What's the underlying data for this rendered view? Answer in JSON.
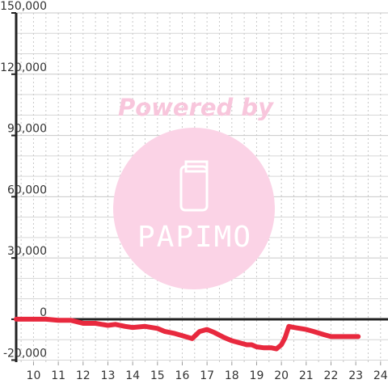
{
  "watermark": {
    "caption": "Powered by",
    "logo_text": "PAPIMO",
    "circle_color": "#fbd3e6",
    "icon": "phone-icon"
  },
  "chart_data": {
    "type": "line",
    "title": "",
    "xlabel": "",
    "ylabel": "",
    "xlim": [
      9.3,
      24.3
    ],
    "ylim": [
      -21000,
      150000
    ],
    "x_ticks": [
      10,
      11,
      12,
      13,
      14,
      15,
      16,
      17,
      18,
      19,
      20,
      21,
      22,
      23,
      24
    ],
    "x_tick_labels": [
      "10",
      "11",
      "12",
      "13",
      "14",
      "15",
      "16",
      "17",
      "18",
      "19",
      "20",
      "21",
      "22",
      "23",
      "24"
    ],
    "y_ticks": [
      -20000,
      0,
      30000,
      60000,
      90000,
      120000,
      150000
    ],
    "y_tick_labels": [
      "-20,000",
      "0",
      "30,000",
      "60,000",
      "90,000",
      "120,000",
      "150,000"
    ],
    "grid": true,
    "line_color": "#e8293e",
    "axis_color": "#222222",
    "series": [
      {
        "x": [
          9.3,
          10.0,
          10.5,
          11.0,
          11.5,
          12.0,
          12.5,
          13.0,
          13.3,
          13.7,
          14.0,
          14.5,
          15.0,
          15.3,
          15.7,
          16.0,
          16.4,
          16.7,
          17.0,
          17.3,
          17.7,
          18.0,
          18.3,
          18.6,
          18.8,
          19.0,
          19.3,
          19.6,
          19.8,
          20.0,
          20.15,
          20.3,
          20.5,
          21.0,
          21.3,
          21.7,
          22.0,
          22.5,
          23.0,
          23.1
        ],
        "y": [
          0,
          0,
          0,
          -500,
          -500,
          -2000,
          -2000,
          -3000,
          -2500,
          -3500,
          -4000,
          -3500,
          -4500,
          -6000,
          -7000,
          -8000,
          -9500,
          -6000,
          -5000,
          -6500,
          -9000,
          -10500,
          -11500,
          -12500,
          -12500,
          -13500,
          -14000,
          -14000,
          -14500,
          -12500,
          -9000,
          -3500,
          -4000,
          -5000,
          -6000,
          -7500,
          -8500,
          -8500,
          -8500,
          -8500
        ]
      }
    ]
  }
}
